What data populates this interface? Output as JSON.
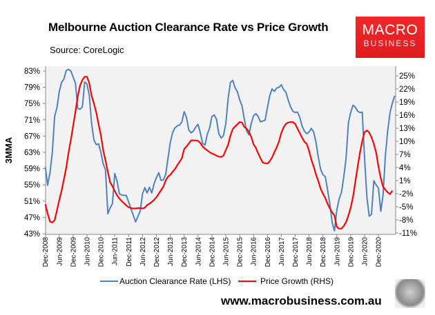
{
  "header": {
    "title": "Melbourne Auction Clearance Rate vs Price Growth",
    "source": "Source: CoreLogic",
    "logo_line1": "MACRO",
    "logo_line2": "BUSINESS",
    "website": "www.macrobusiness.com.au"
  },
  "colors": {
    "blue": "#4f81bd",
    "red": "#ff0000",
    "plot_bg": "#f2f2f2",
    "logo_red": "#e8201f"
  },
  "chart_data": {
    "type": "line",
    "title": "Melbourne Auction Clearance Rate vs Price Growth",
    "ylabel": "3MMA",
    "ylim_left": [
      43,
      83
    ],
    "ylim_right": [
      -11,
      25
    ],
    "left_ticks": [
      "43%",
      "47%",
      "51%",
      "55%",
      "59%",
      "63%",
      "67%",
      "71%",
      "75%",
      "79%",
      "83%"
    ],
    "right_ticks": [
      "-11%",
      "-8%",
      "-5%",
      "-2%",
      "1%",
      "4%",
      "7%",
      "10%",
      "13%",
      "16%",
      "19%",
      "22%",
      "25%"
    ],
    "x_ticks": [
      "Dec-2008",
      "Jun-2009",
      "Dec-2009",
      "Jun-2010",
      "Dec-2010",
      "Jun-2011",
      "Dec-2011",
      "Jun-2012",
      "Dec-2012",
      "Jun-2013",
      "Dec-2013",
      "Jun-2014",
      "Dec-2014",
      "Jun-2015",
      "Dec-2015",
      "Jun-2016",
      "Dec-2016",
      "Jun-2017",
      "Dec-2017",
      "Jun-2018",
      "Dec-2018",
      "Jun-2019",
      "Dec-2019",
      "Jun-2020",
      "Dec-2020"
    ],
    "grid": false,
    "legend_placement": "bottom",
    "x": [
      "2008-12",
      "2009-01",
      "2009-02",
      "2009-03",
      "2009-04",
      "2009-05",
      "2009-06",
      "2009-07",
      "2009-08",
      "2009-09",
      "2009-10",
      "2009-11",
      "2009-12",
      "2010-01",
      "2010-02",
      "2010-03",
      "2010-04",
      "2010-05",
      "2010-06",
      "2010-07",
      "2010-08",
      "2010-09",
      "2010-10",
      "2010-11",
      "2010-12",
      "2011-01",
      "2011-02",
      "2011-03",
      "2011-04",
      "2011-05",
      "2011-06",
      "2011-07",
      "2011-08",
      "2011-09",
      "2011-10",
      "2011-11",
      "2011-12",
      "2012-01",
      "2012-02",
      "2012-03",
      "2012-04",
      "2012-05",
      "2012-06",
      "2012-07",
      "2012-08",
      "2012-09",
      "2012-10",
      "2012-11",
      "2012-12",
      "2013-01",
      "2013-02",
      "2013-03",
      "2013-04",
      "2013-05",
      "2013-06",
      "2013-07",
      "2013-08",
      "2013-09",
      "2013-10",
      "2013-11",
      "2013-12",
      "2014-01",
      "2014-02",
      "2014-03",
      "2014-04",
      "2014-05",
      "2014-06",
      "2014-07",
      "2014-08",
      "2014-09",
      "2014-10",
      "2014-11",
      "2014-12",
      "2015-01",
      "2015-02",
      "2015-03",
      "2015-04",
      "2015-05",
      "2015-06",
      "2015-07",
      "2015-08",
      "2015-09",
      "2015-10",
      "2015-11",
      "2015-12",
      "2016-01",
      "2016-02",
      "2016-03",
      "2016-04",
      "2016-05",
      "2016-06",
      "2016-07",
      "2016-08",
      "2016-09",
      "2016-10",
      "2016-11",
      "2016-12",
      "2017-01",
      "2017-02",
      "2017-03",
      "2017-04",
      "2017-05",
      "2017-06",
      "2017-07",
      "2017-08",
      "2017-09",
      "2017-10",
      "2017-11",
      "2017-12",
      "2018-01",
      "2018-02",
      "2018-03",
      "2018-04",
      "2018-05",
      "2018-06",
      "2018-07",
      "2018-08",
      "2018-09",
      "2018-10",
      "2018-11",
      "2018-12",
      "2019-01",
      "2019-02",
      "2019-03",
      "2019-04",
      "2019-05",
      "2019-06",
      "2019-07",
      "2019-08",
      "2019-09",
      "2019-10",
      "2019-11",
      "2019-12",
      "2020-01",
      "2020-02",
      "2020-03",
      "2020-04",
      "2020-05",
      "2020-06",
      "2020-07",
      "2020-08",
      "2020-09",
      "2020-10",
      "2020-11",
      "2020-12",
      "2021-01",
      "2021-02",
      "2021-03",
      "2021-04",
      "2021-05",
      "2021-06",
      "2021-07"
    ],
    "series": [
      {
        "name": "Auction Clearance Rate (LHS)",
        "axis": "left",
        "color": "#4f81bd",
        "values": [
          59.4,
          54.9,
          58,
          63,
          71.8,
          74,
          77.9,
          80.2,
          81,
          83.1,
          83.4,
          83,
          81.5,
          80,
          73.8,
          73.6,
          74.2,
          80.3,
          79.8,
          77,
          70,
          66,
          64.9,
          65.1,
          63,
          60.2,
          58.7,
          47.9,
          49.3,
          50.4,
          57.8,
          55.9,
          52.8,
          52.5,
          52.4,
          52.4,
          50.8,
          49.1,
          47.5,
          45.9,
          47.2,
          48.6,
          52.8,
          54.3,
          53,
          54.4,
          53,
          55.3,
          56.8,
          58,
          56.1,
          56.2,
          57.5,
          61.5,
          65.4,
          67.8,
          69,
          69.5,
          69.7,
          70.5,
          73,
          71.6,
          68.5,
          67.8,
          68.2,
          69.2,
          69.9,
          67.7,
          65.2,
          64.8,
          67.4,
          69,
          71.8,
          72.2,
          71.1,
          67.6,
          66.5,
          67.1,
          70,
          76.2,
          80.2,
          80.7,
          78.9,
          77.9,
          75.9,
          74.5,
          71.2,
          68.3,
          67.3,
          70.1,
          72,
          72.5,
          71.8,
          70.5,
          70.7,
          70.9,
          74,
          76.9,
          78.6,
          78,
          78.8,
          79,
          79.6,
          78.4,
          77.8,
          75.8,
          74.2,
          73.1,
          72.8,
          72.9,
          71.6,
          69.4,
          68.2,
          67.6,
          68,
          68.9,
          68,
          65.5,
          61.8,
          58.8,
          57.5,
          57,
          53.8,
          50.2,
          45.7,
          43.7,
          48.8,
          51.5,
          53.1,
          57,
          61.5,
          70.3,
          72.8,
          74.6,
          74.1,
          73.1,
          72.8,
          72.9,
          61.5,
          51.9,
          47.3,
          47.8,
          56,
          55,
          54.2,
          48.5,
          52.5,
          62.1,
          68.3,
          72.8,
          75.1,
          76.9
        ]
      },
      {
        "name": "Price Growth (RHS)",
        "axis": "right",
        "color": "#ff0000",
        "values": [
          -4.4,
          -6.6,
          -8.4,
          -8.6,
          -8.1,
          -5.8,
          -3.5,
          -1.3,
          1.2,
          3.9,
          7.3,
          10.3,
          13.5,
          16.8,
          20.3,
          22.8,
          24,
          24.8,
          24.8,
          23.3,
          20.4,
          18.6,
          16.6,
          13.9,
          11.4,
          8,
          5.6,
          3,
          0.6,
          -0.3,
          -1.4,
          -2.4,
          -3.1,
          -3.7,
          -4.2,
          -4.7,
          -5.1,
          -5.3,
          -5.4,
          -5.4,
          -5.3,
          -5.3,
          -5.4,
          -5.2,
          -4.6,
          -4.3,
          -3.9,
          -3.4,
          -2.8,
          -2,
          -1.2,
          -0.4,
          1,
          1.9,
          2.3,
          3,
          3.6,
          4.5,
          5.3,
          6.1,
          8.2,
          8.8,
          9.5,
          10.2,
          10.2,
          10.2,
          10.1,
          9.6,
          8.8,
          8.3,
          7.9,
          7.5,
          7.2,
          7,
          6.7,
          6.5,
          6.4,
          6.7,
          8,
          9.2,
          11.3,
          12.8,
          13.4,
          13.9,
          14.4,
          14.3,
          13.3,
          12.9,
          12.2,
          11,
          9.3,
          8.5,
          7.2,
          6.1,
          5.1,
          5,
          4.9,
          5.4,
          6.3,
          7.5,
          8.6,
          10,
          11.9,
          13.2,
          14,
          14.3,
          14.4,
          14.4,
          14,
          12.9,
          11.9,
          10.8,
          9.9,
          9.4,
          7.8,
          5.8,
          4.2,
          2.4,
          0.9,
          -0.9,
          -2,
          -3,
          -4.3,
          -5.4,
          -6.3,
          -7,
          -9.6,
          -10,
          -10,
          -9.4,
          -8.5,
          -7,
          -5.2,
          -2.7,
          0.7,
          4.2,
          7.4,
          10,
          12.1,
          12.5,
          12,
          10.9,
          9.4,
          7.4,
          4.2,
          1.5,
          -0.4,
          -1.1,
          -1.7,
          -2.1,
          -1.3,
          null
        ]
      }
    ]
  }
}
